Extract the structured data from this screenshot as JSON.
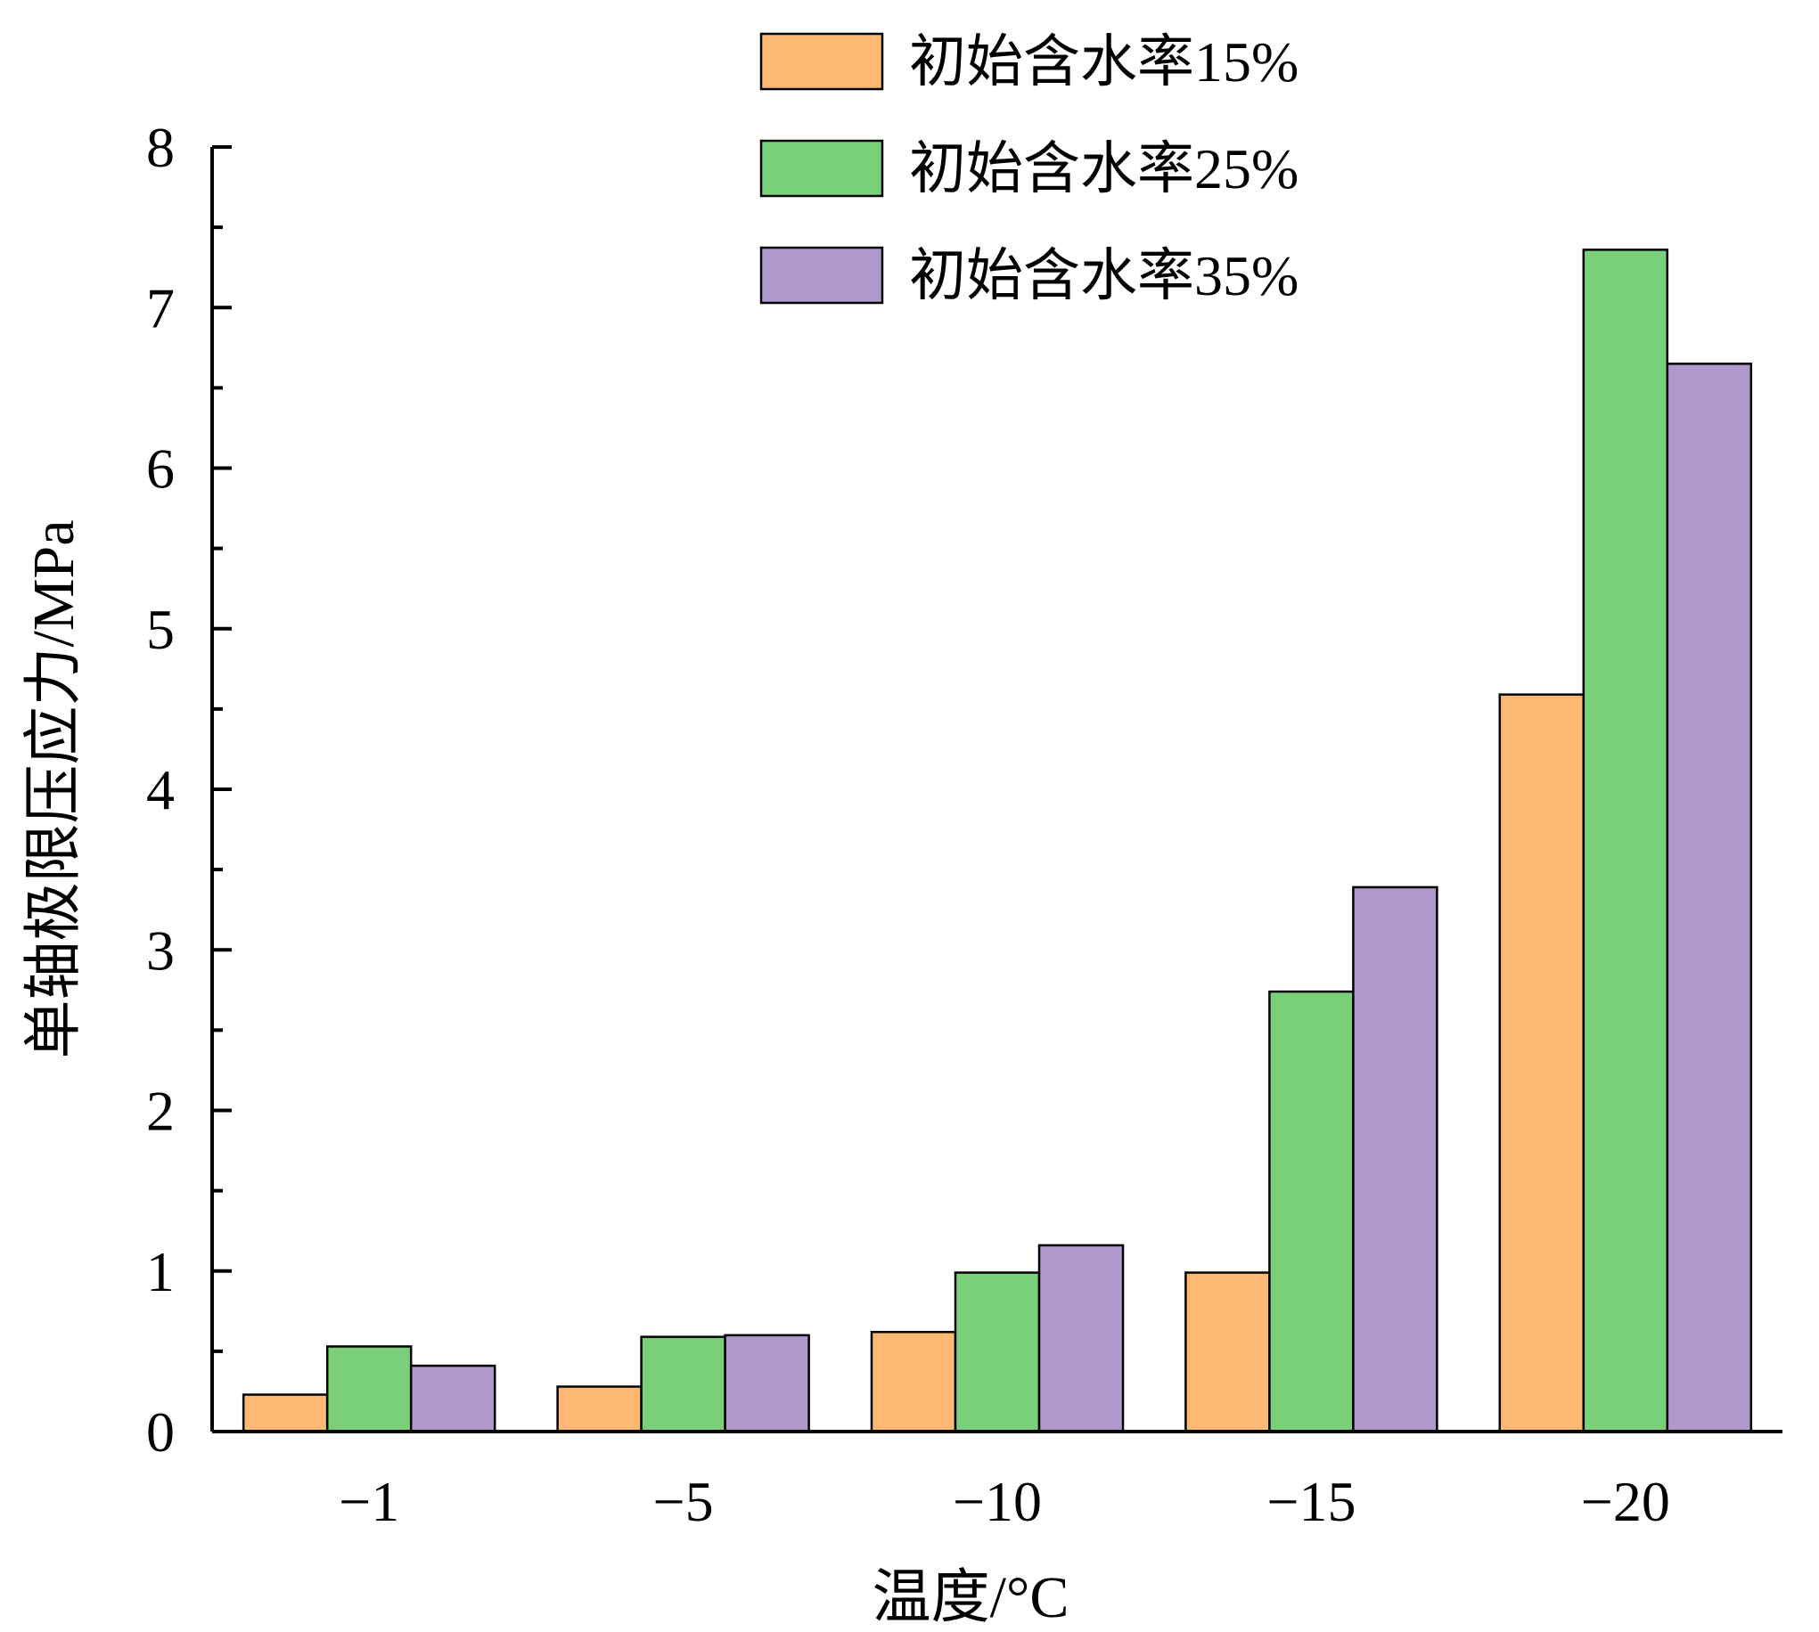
{
  "chart_data": {
    "type": "bar",
    "categories": [
      "−1",
      "−5",
      "−10",
      "−15",
      "−20"
    ],
    "series": [
      {
        "name": "初始含水率15%",
        "color": "#FDB874",
        "values": [
          0.23,
          0.28,
          0.62,
          0.99,
          4.59
        ]
      },
      {
        "name": "初始含水率25%",
        "color": "#7ACF79",
        "values": [
          0.53,
          0.59,
          0.99,
          2.74,
          7.36
        ]
      },
      {
        "name": "初始含水率35%",
        "color": "#AE98CC",
        "values": [
          0.41,
          0.6,
          1.16,
          3.39,
          6.65
        ]
      }
    ],
    "xlabel": "温度/°C",
    "ylabel": "单轴极限压应力/MPa",
    "ylim": [
      0,
      8
    ],
    "yticks": [
      "0",
      "1",
      "2",
      "3",
      "4",
      "5",
      "6",
      "7",
      "8"
    ],
    "legend_position": "top-right",
    "grid": false
  }
}
